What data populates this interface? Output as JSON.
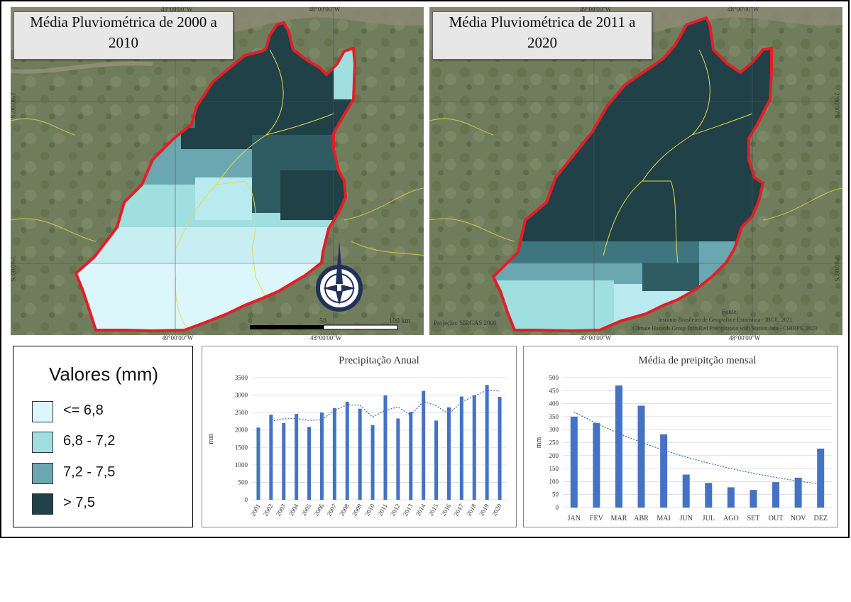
{
  "colors": {
    "class1": "#dcf7fb",
    "class2": "#9fdfe0",
    "class3": "#6aa7b1",
    "class4": "#1f4147",
    "boundary": "#e41e26",
    "bar": "#4472c4",
    "trend": "#4472c4"
  },
  "map_left": {
    "title": "Média Pluviométrica de 2000 a 2010",
    "coords": {
      "top_left": "49°00'00\"W",
      "top_right": "48°00'00\"W",
      "bottom_left": "49°00'00\"W",
      "bottom_right": "48°00'00\"W",
      "lat_upper": "2°00'00\"S",
      "lat_lower": "3°00'00\"S"
    },
    "scale": {
      "zero": "0",
      "mid": "50",
      "end": "100 km"
    },
    "north_icon": "compass-rose-icon"
  },
  "map_right": {
    "title": "Média Pluviométrica de 2011 a 2020",
    "coords": {
      "top_left": "49°00'00\"W",
      "top_right": "48°00'00\"W",
      "bottom_left": "49°00'00\"W",
      "bottom_right": "48°00'00\"W",
      "lat_upper": "2°00'00\"S",
      "lat_lower": "3°00'00\"S"
    },
    "projection": "Projeção: SIRGAS 2000",
    "source_title": "Fonte:",
    "source_line1": "Instituto Brasileiro de Geografia  e Estatística - IBGE, 2021",
    "source_line2": "Climate Hazards Group InfraRed Precipitation with Station data - CHIRPS, 2023"
  },
  "legend": {
    "title": "Valores (mm)",
    "items": [
      {
        "label": "<= 6,8",
        "color": "#dcf7fb"
      },
      {
        "label": "6,8 - 7,2",
        "color": "#9fdfe0"
      },
      {
        "label": "7,2 - 7,5",
        "color": "#6aa7b1"
      },
      {
        "label": "> 7,5",
        "color": "#1f4147"
      }
    ]
  },
  "chart_data": [
    {
      "type": "bar",
      "title": "Precipitação Anual",
      "ylabel": "mm",
      "xlabel": "",
      "ylim": [
        0,
        3500
      ],
      "yticks": [
        0,
        500,
        1000,
        1500,
        2000,
        2500,
        3000,
        3500
      ],
      "categories": [
        "2001",
        "2002",
        "2003",
        "2004",
        "2005",
        "2006",
        "2007",
        "2008",
        "2009",
        "2010",
        "2011",
        "2012",
        "2013",
        "2014",
        "2015",
        "2016",
        "2017",
        "2018",
        "2019",
        "2020"
      ],
      "values": [
        2070,
        2440,
        2200,
        2460,
        2090,
        2500,
        2630,
        2810,
        2610,
        2140,
        2990,
        2330,
        2520,
        3120,
        2270,
        2650,
        2960,
        2990,
        3290,
        2950
      ],
      "trendline": "moving-average",
      "trend_values": [
        null,
        2255,
        2320,
        2330,
        2275,
        2295,
        2565,
        2720,
        2710,
        2375,
        2565,
        2660,
        2425,
        2820,
        2695,
        2460,
        2805,
        2975,
        3140,
        3120
      ]
    },
    {
      "type": "bar",
      "title": "Média de preipitção mensal",
      "ylabel": "mm",
      "xlabel": "",
      "ylim": [
        0,
        500
      ],
      "yticks": [
        0,
        50,
        100,
        150,
        200,
        250,
        300,
        350,
        400,
        450,
        500
      ],
      "categories": [
        "JAN",
        "FEV",
        "MAR",
        "ABR",
        "MAI",
        "JUN",
        "JUL",
        "AGO",
        "SET",
        "OUT",
        "NOV",
        "DEZ"
      ],
      "values": [
        350,
        325,
        470,
        392,
        282,
        127,
        95,
        78,
        68,
        98,
        115,
        227
      ],
      "trendline": "exponential",
      "trend_values": [
        368,
        324,
        285,
        251,
        221,
        194,
        171,
        150,
        132,
        116,
        102,
        90
      ]
    }
  ]
}
